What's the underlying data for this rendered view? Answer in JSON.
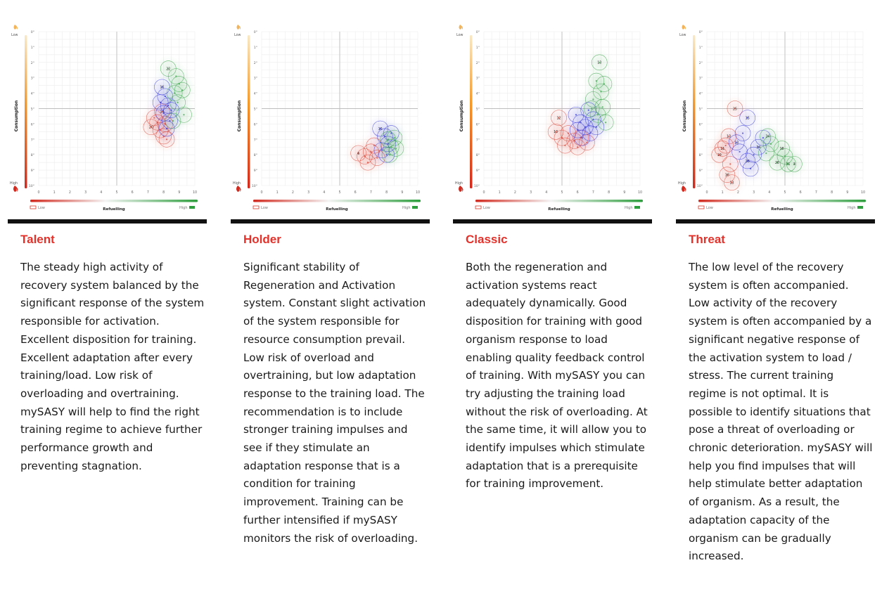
{
  "colors": {
    "red": "#d93a2b",
    "green": "#2e9e3e",
    "blue": "#2a2ad6",
    "title_red": "#e4322b"
  },
  "panels": [
    {
      "title": "Talent",
      "description": "The steady high activity of recovery system balanced by the significant response of the system responsible for activation. Excellent disposition for training. Excellent adaptation after every training/load. Low risk of overloading and overtraining. mySASY will help to find the right training regime to achieve further performance growth and preventing stagnation."
    },
    {
      "title": "Holder",
      "description": "Significant stability of Regeneration and Activation system. Constant slight activation of the system responsible for resource consumption prevail. Low risk of overload and overtraining, but low adaptation response to the training load. The recommendation is to include stronger training impulses and see if they stimulate an adaptation response that is a condition for training improvement. Training can be further intensified if mySASY monitors the risk of overloading."
    },
    {
      "title": "Classic",
      "description": "Both the regeneration and activation systems react adequately dynamically. Good disposition for training with good organism response to load enabling quality feedback control of training. With mySASY you can try adjusting the training load without the risk of overloading. At the same time, it will allow you to identify impulses which stimulate adaptation that is a prerequisite for training improvement."
    },
    {
      "title": "Threat",
      "description": "The low level of the recovery system is often accompanied. Low activity of the recovery system is often accompanied by a significant negative response of the activation system to load / stress. The current training regime is not optimal. It is possible to identify situations that pose a threat of overloading or chronic deterioration. mySASY will help you find impulses that will help stimulate better adaptation of organism. As a result, the adaptation capacity of the organism can be gradually increased."
    }
  ],
  "chart_data": [
    {
      "type": "scatter",
      "xlabel": "Refuelling",
      "ylabel": "Consumption",
      "x_low_label": "Low",
      "x_high_label": "High",
      "y_low_label": "Low",
      "y_high_label": "High",
      "xlim": [
        0,
        10
      ],
      "ylim": [
        0,
        10
      ],
      "x_ticks": [
        0,
        1,
        2,
        3,
        4,
        5,
        6,
        7,
        8,
        9,
        10
      ],
      "y_ticks": [
        0,
        1,
        2,
        3,
        4,
        5,
        6,
        7,
        8,
        9,
        10
      ],
      "series": [
        {
          "color": "red",
          "points": [
            [
              7.2,
              6.2,
              "20"
            ],
            [
              7.6,
              5.9,
              ""
            ],
            [
              7.8,
              6.4,
              ""
            ],
            [
              8.0,
              6.8,
              ""
            ],
            [
              7.4,
              5.6,
              ""
            ],
            [
              8.2,
              7.0,
              ""
            ],
            [
              7.9,
              5.2,
              "14"
            ],
            [
              8.1,
              6.0,
              ""
            ]
          ]
        },
        {
          "color": "blue",
          "points": [
            [
              7.9,
              3.6,
              "16"
            ],
            [
              8.1,
              4.2,
              ""
            ],
            [
              8.3,
              4.8,
              ""
            ],
            [
              8.0,
              5.3,
              ""
            ],
            [
              8.4,
              5.8,
              ""
            ],
            [
              8.2,
              6.3,
              ""
            ],
            [
              7.8,
              4.6,
              ""
            ],
            [
              8.5,
              5.1,
              ""
            ]
          ]
        },
        {
          "color": "green",
          "points": [
            [
              8.3,
              2.4,
              "22"
            ],
            [
              8.8,
              2.9,
              ""
            ],
            [
              9.0,
              3.4,
              ""
            ],
            [
              8.7,
              4.0,
              ""
            ],
            [
              9.2,
              3.8,
              ""
            ],
            [
              8.9,
              4.6,
              ""
            ],
            [
              9.3,
              5.4,
              ""
            ],
            [
              8.6,
              5.8,
              ""
            ]
          ]
        }
      ]
    },
    {
      "type": "scatter",
      "xlabel": "Refuelling",
      "ylabel": "Consumption",
      "x_low_label": "Low",
      "x_high_label": "High",
      "y_low_label": "Low",
      "y_high_label": "High",
      "xlim": [
        0,
        10
      ],
      "ylim": [
        0,
        10
      ],
      "x_ticks": [
        0,
        1,
        2,
        3,
        4,
        5,
        6,
        7,
        8,
        9,
        10
      ],
      "y_ticks": [
        0,
        1,
        2,
        3,
        4,
        5,
        6,
        7,
        8,
        9,
        10
      ],
      "series": [
        {
          "color": "red",
          "points": [
            [
              6.2,
              7.9,
              "6"
            ],
            [
              6.6,
              8.1,
              ""
            ],
            [
              7.0,
              7.8,
              ""
            ],
            [
              7.4,
              8.2,
              ""
            ],
            [
              6.8,
              8.5,
              ""
            ],
            [
              7.2,
              7.4,
              ""
            ]
          ]
        },
        {
          "color": "blue",
          "points": [
            [
              7.6,
              6.3,
              "15"
            ],
            [
              7.9,
              6.8,
              ""
            ],
            [
              8.1,
              7.3,
              ""
            ],
            [
              7.7,
              7.7,
              ""
            ],
            [
              8.0,
              8.0,
              ""
            ],
            [
              8.3,
              6.6,
              ""
            ]
          ]
        },
        {
          "color": "green",
          "points": [
            [
              8.1,
              7.0,
              ""
            ],
            [
              8.3,
              7.5,
              ""
            ],
            [
              8.5,
              6.9,
              ""
            ],
            [
              8.2,
              8.0,
              ""
            ],
            [
              8.6,
              7.6,
              ""
            ]
          ]
        }
      ]
    },
    {
      "type": "scatter",
      "xlabel": "Refuelling",
      "ylabel": "Consumption",
      "x_low_label": "Low",
      "x_high_label": "High",
      "y_low_label": "Low",
      "y_high_label": "High",
      "xlim": [
        0,
        10
      ],
      "ylim": [
        0,
        10
      ],
      "x_ticks": [
        0,
        1,
        2,
        3,
        4,
        5,
        6,
        7,
        8,
        9,
        10
      ],
      "y_ticks": [
        0,
        1,
        2,
        3,
        4,
        5,
        6,
        7,
        8,
        9,
        10
      ],
      "series": [
        {
          "color": "red",
          "points": [
            [
              4.6,
              6.5,
              "13"
            ],
            [
              5.0,
              6.9,
              ""
            ],
            [
              5.4,
              6.6,
              ""
            ],
            [
              5.8,
              7.1,
              ""
            ],
            [
              5.2,
              7.4,
              ""
            ],
            [
              6.2,
              6.9,
              ""
            ],
            [
              4.8,
              5.6,
              "12"
            ],
            [
              6.0,
              7.5,
              ""
            ],
            [
              6.6,
              7.2,
              ""
            ]
          ]
        },
        {
          "color": "blue",
          "points": [
            [
              5.9,
              5.4,
              ""
            ],
            [
              6.2,
              5.9,
              ""
            ],
            [
              6.5,
              6.2,
              ""
            ],
            [
              6.8,
              6.6,
              ""
            ],
            [
              6.3,
              6.9,
              ""
            ],
            [
              7.0,
              5.7,
              ""
            ],
            [
              6.0,
              6.4,
              ""
            ],
            [
              6.7,
              5.1,
              ""
            ],
            [
              7.2,
              6.2,
              ""
            ]
          ]
        },
        {
          "color": "green",
          "points": [
            [
              7.4,
              2.0,
              "13"
            ],
            [
              7.2,
              3.2,
              ""
            ],
            [
              7.5,
              3.9,
              ""
            ],
            [
              7.0,
              4.4,
              ""
            ],
            [
              7.6,
              4.9,
              ""
            ],
            [
              7.3,
              5.4,
              ""
            ],
            [
              7.8,
              5.9,
              ""
            ],
            [
              6.9,
              5.0,
              ""
            ],
            [
              7.7,
              3.4,
              ""
            ]
          ]
        }
      ]
    },
    {
      "type": "scatter",
      "xlabel": "Refuelling",
      "ylabel": "Consumption",
      "x_low_label": "Low",
      "x_high_label": "High",
      "y_low_label": "Low",
      "y_high_label": "High",
      "xlim": [
        0,
        10
      ],
      "ylim": [
        0,
        10
      ],
      "x_ticks": [
        0,
        1,
        2,
        3,
        4,
        5,
        6,
        7,
        8,
        9,
        10
      ],
      "y_ticks": [
        0,
        1,
        2,
        3,
        4,
        5,
        6,
        7,
        8,
        9,
        10
      ],
      "series": [
        {
          "color": "red",
          "points": [
            [
              1.8,
              5.0,
              "25"
            ],
            [
              1.4,
              6.8,
              "13"
            ],
            [
              1.2,
              7.4,
              ""
            ],
            [
              0.8,
              8.0,
              "19"
            ],
            [
              1.5,
              8.6,
              ""
            ],
            [
              1.3,
              9.3,
              "18"
            ],
            [
              1.6,
              9.8,
              "13"
            ],
            [
              1.0,
              7.6,
              "11"
            ]
          ]
        },
        {
          "color": "blue",
          "points": [
            [
              1.9,
              7.2,
              "13"
            ],
            [
              2.3,
              6.6,
              ""
            ],
            [
              2.1,
              7.8,
              ""
            ],
            [
              2.6,
              8.4,
              "28"
            ],
            [
              3.0,
              8.0,
              ""
            ],
            [
              3.3,
              7.5,
              "34"
            ],
            [
              2.8,
              8.9,
              ""
            ],
            [
              3.6,
              6.9,
              ""
            ]
          ]
        },
        {
          "color": "green",
          "points": [
            [
              3.9,
              6.8,
              "24"
            ],
            [
              4.1,
              7.3,
              ""
            ],
            [
              3.8,
              7.9,
              ""
            ],
            [
              4.8,
              7.6,
              "18"
            ],
            [
              5.0,
              8.1,
              ""
            ],
            [
              5.2,
              8.6,
              "31"
            ],
            [
              4.5,
              8.5,
              "28"
            ],
            [
              5.6,
              8.6,
              "3"
            ]
          ]
        },
        {
          "color": "blue-single",
          "points": [
            [
              2.6,
              5.6,
              "15"
            ]
          ]
        }
      ]
    }
  ]
}
